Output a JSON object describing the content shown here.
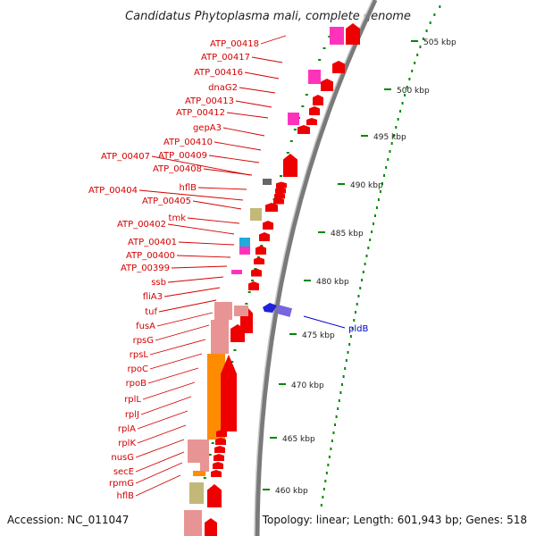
{
  "header": {
    "title": "Candidatus Phytoplasma mali, complete genome"
  },
  "footer": {
    "accession": "Accession: NC_011047",
    "summary": "Topology: linear; Length: 601,943 bp; Genes: 518"
  },
  "colors": {
    "gene_label": "#d40000",
    "cds_arrow": "#ee0000",
    "magenta": "#ff33bb",
    "pink": "#e89494",
    "orange": "#ff8c00",
    "khaki": "#c2b878",
    "cyan": "#22aadd",
    "blue": "#2020dd",
    "ruler_tick": "#008800",
    "callout": "#0000cc"
  },
  "gene_labels": [
    "ATP_00418",
    "ATP_00417",
    "ATP_00416",
    "dnaG2",
    "ATP_00413",
    "ATP_00412",
    "gepA3",
    "ATP_00410",
    "ATP_00409",
    "ATP_00407",
    "ATP_00408",
    "hflB",
    "ATP_00404",
    "ATP_00405",
    "tmk",
    "ATP_00402",
    "ATP_00401",
    "ATP_00400",
    "ATP_00399",
    "ssb",
    "fliA3",
    "tuf",
    "fusA",
    "rpsG",
    "rpsL",
    "rpoC",
    "rpoB",
    "rplL",
    "rplJ",
    "rplA",
    "rplK",
    "nusG",
    "secE",
    "rpmG",
    "hflB"
  ],
  "ruler_labels": [
    "505 kbp",
    "500 kbp",
    "495 kbp",
    "490 kbp",
    "485 kbp",
    "480 kbp",
    "475 kbp",
    "470 kbp",
    "465 kbp",
    "460 kbp"
  ],
  "callout_label": "pldB"
}
